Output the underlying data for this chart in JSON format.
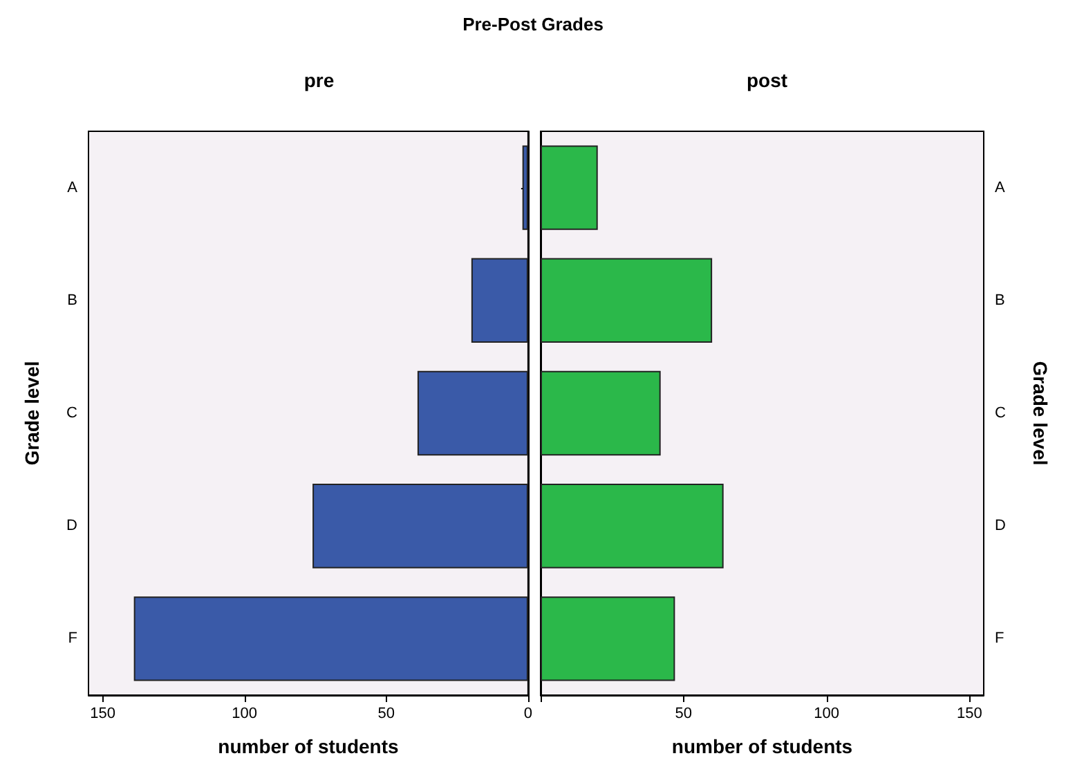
{
  "chart_data": [
    {
      "type": "bar",
      "orientation": "horizontal",
      "title": "Pre-Post Grades",
      "subtitle": "pre",
      "xlabel": "number of students",
      "ylabel": "Grade level",
      "categories": [
        "A",
        "B",
        "C",
        "D",
        "F"
      ],
      "series": [
        {
          "color": "#3a5aa8",
          "values": [
            2,
            20,
            39,
            76,
            139
          ]
        }
      ],
      "xlim": [
        155,
        0
      ],
      "xticks": [
        150,
        100,
        50,
        0
      ]
    },
    {
      "type": "bar",
      "orientation": "horizontal",
      "subtitle": "post",
      "xlabel": "number of students",
      "ylabel": "Grade level",
      "categories": [
        "A",
        "B",
        "C",
        "D",
        "F"
      ],
      "series": [
        {
          "color": "#2bb84a",
          "values": [
            20,
            60,
            42,
            64,
            47
          ]
        }
      ],
      "xlim": [
        0,
        155
      ],
      "xticks": [
        {
          "value": 0,
          "label": null
        },
        50,
        100,
        150
      ]
    }
  ]
}
